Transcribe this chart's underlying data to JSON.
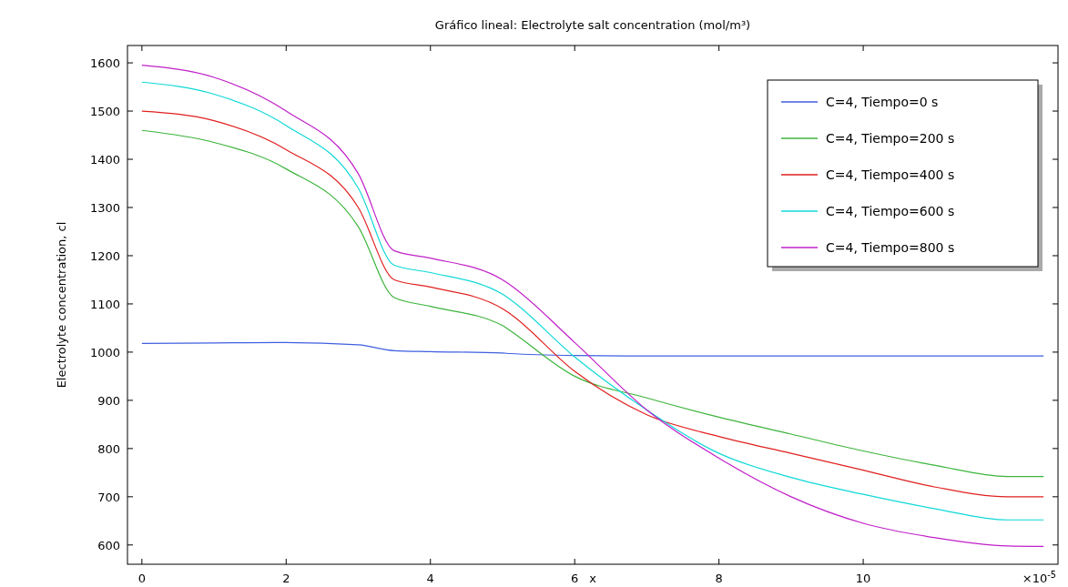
{
  "chart_data": {
    "type": "line",
    "title": "Gráfico lineal: Electrolyte salt concentration (mol/m³)",
    "xlabel": "x",
    "ylabel": "Electrolyte concentration, cl",
    "annotations": [
      "×10$^{-5}$"
    ],
    "xlim": [
      -0.2,
      12.7
    ],
    "xticks": [
      0,
      2,
      4,
      6,
      8,
      10
    ],
    "ylim": [
      560,
      1636
    ],
    "yticks": [
      600,
      700,
      800,
      900,
      1000,
      1100,
      1200,
      1300,
      1400,
      1500,
      1600
    ],
    "grid": false,
    "legend": "top right",
    "line_style": "solid",
    "x": [
      0,
      1,
      2,
      3,
      3.5,
      4,
      5,
      5.1,
      6,
      7,
      8,
      9,
      10,
      11,
      12,
      12.5
    ],
    "series": [
      {
        "name": "C=4, Tiempo=0 s",
        "color": "#3f5fe0",
        "values": [
          1018,
          1019,
          1020,
          1015,
          1003,
          1001,
          998,
          997,
          993,
          992,
          992,
          992,
          992,
          992,
          992,
          992
        ]
      },
      {
        "name": "C=4, Tiempo=200 s",
        "color": "#3cb43c",
        "values": [
          1460,
          1435,
          1380,
          1260,
          1113,
          1095,
          1055,
          1045,
          950,
          905,
          865,
          830,
          795,
          765,
          742,
          742
        ]
      },
      {
        "name": "C=4, Tiempo=400 s",
        "color": "#e02020",
        "values": [
          1500,
          1480,
          1420,
          1300,
          1150,
          1135,
          1090,
          1080,
          960,
          870,
          825,
          790,
          755,
          720,
          700,
          700
        ]
      },
      {
        "name": "C=4, Tiempo=600 s",
        "color": "#10d8d8",
        "values": [
          1560,
          1535,
          1470,
          1340,
          1180,
          1165,
          1120,
          1110,
          990,
          880,
          790,
          740,
          705,
          675,
          652,
          652
        ]
      },
      {
        "name": "C=4, Tiempo=800 s",
        "color": "#c020c8",
        "values": [
          1595,
          1570,
          1500,
          1370,
          1210,
          1195,
          1150,
          1140,
          1020,
          880,
          780,
          700,
          645,
          615,
          598,
          597
        ]
      }
    ]
  }
}
